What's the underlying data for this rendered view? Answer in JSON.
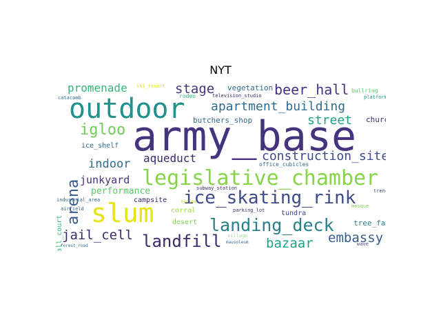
{
  "title": "NYT",
  "palette": {
    "dark_purple": "#3b2a6b",
    "purple": "#46337e",
    "indigo": "#3e4a89",
    "blue": "#365c8d",
    "slate": "#2f6b8e",
    "teal": "#277f8e",
    "green_teal": "#1fa187",
    "green": "#35b779",
    "light_green": "#6ece58",
    "lime": "#b5de2b",
    "yellow": "#e6e419",
    "pale": "#a8d8a0"
  },
  "words": [
    {
      "text": "army_base",
      "color": "#46337e"
    },
    {
      "text": "outdoor",
      "color": "#21918c"
    },
    {
      "text": "legislative_chamber",
      "color": "#86d549"
    },
    {
      "text": "ice_skating_rink",
      "color": "#3e4a89"
    },
    {
      "text": "slum",
      "color": "#e6e419"
    },
    {
      "text": "landing_deck",
      "color": "#277f8e"
    },
    {
      "text": "landfill",
      "color": "#3b2a6b"
    },
    {
      "text": "apartment_building",
      "color": "#2f6b8e"
    },
    {
      "text": "beer_hall",
      "color": "#46337e"
    },
    {
      "text": "igloo",
      "color": "#6ece58"
    },
    {
      "text": "construction_site",
      "color": "#3e4a89"
    },
    {
      "text": "arena",
      "color": "#365c8d"
    },
    {
      "text": "jail_cell",
      "color": "#3b2a6b"
    },
    {
      "text": "embassy",
      "color": "#365c8d"
    },
    {
      "text": "bazaar",
      "color": "#1fa187"
    },
    {
      "text": "promenade",
      "color": "#35b779"
    },
    {
      "text": "stage",
      "color": "#46337e"
    },
    {
      "text": "street",
      "color": "#1fa187"
    },
    {
      "text": "indoor",
      "color": "#2f6b8e"
    },
    {
      "text": "aqueduct",
      "color": "#3b2a6b"
    },
    {
      "text": "junkyard",
      "color": "#46337e"
    },
    {
      "text": "performance",
      "color": "#5ac864"
    },
    {
      "text": "vegetation",
      "color": "#2f6b8e"
    },
    {
      "text": "butchers_shop",
      "color": "#2f6b8e"
    },
    {
      "text": "church",
      "color": "#3b2a6b"
    },
    {
      "text": "tree_farm",
      "color": "#277f8e"
    },
    {
      "text": "tundra",
      "color": "#3e4a89"
    },
    {
      "text": "desert",
      "color": "#7ad151"
    },
    {
      "text": "corral",
      "color": "#a0da39"
    },
    {
      "text": "campsite",
      "color": "#3b2a6b"
    },
    {
      "text": "ice_shelf",
      "color": "#2f6b8e"
    },
    {
      "text": "volleyball_court",
      "color": "#35b779"
    },
    {
      "text": "ski_resort",
      "color": "#e6e419"
    },
    {
      "text": "rodeo",
      "color": "#35b779"
    },
    {
      "text": "television_studio",
      "color": "#3b2a6b"
    },
    {
      "text": "bullring",
      "color": "#5ac864"
    },
    {
      "text": "platform",
      "color": "#1fa187"
    },
    {
      "text": "catacomb",
      "color": "#2f6b8e"
    },
    {
      "text": "office_cubicles",
      "color": "#2f6b8e"
    },
    {
      "text": "subway_station",
      "color": "#3b2a6b"
    },
    {
      "text": "marina",
      "color": "#b5de2b"
    },
    {
      "text": "parking_lot",
      "color": "#3b2a6b"
    },
    {
      "text": "mosque",
      "color": "#7ad151"
    },
    {
      "text": "trench",
      "color": "#3e4a89"
    },
    {
      "text": "industrial_area",
      "color": "#2f6b8e"
    },
    {
      "text": "airfield",
      "color": "#365c8d"
    },
    {
      "text": "village",
      "color": "#a8d8a0"
    },
    {
      "text": "mausoleum",
      "color": "#2f6b8e"
    },
    {
      "text": "forest_road",
      "color": "#2f6b8e"
    },
    {
      "text": "wave",
      "color": "#3e4a89"
    }
  ]
}
